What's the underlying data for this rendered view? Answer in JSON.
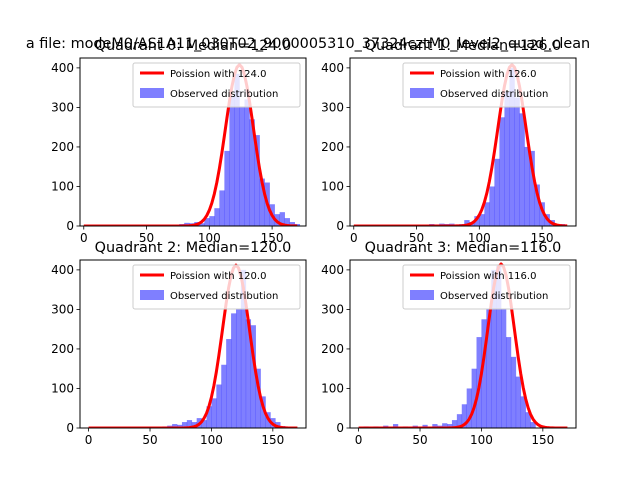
{
  "figure_title": "a file: modeM0/AS1A11_030T02_9000005310_37324cztM0_level2_quad_clean",
  "chart_data": [
    {
      "type": "bar",
      "title": "Quadrant 0: Median=124.0",
      "xlim": [
        -3,
        177
      ],
      "ylim": [
        0,
        425
      ],
      "xticks": [
        0,
        50,
        100,
        150
      ],
      "yticks": [
        0,
        100,
        200,
        300,
        400
      ],
      "legend_position": "top-right",
      "legend": [
        "Poission with 124.0",
        "Observed distribution"
      ],
      "bins": [
        [
          76,
          5
        ],
        [
          80,
          8
        ],
        [
          84,
          7
        ],
        [
          88,
          10
        ],
        [
          92,
          7
        ],
        [
          96,
          20
        ],
        [
          100,
          25
        ],
        [
          104,
          45
        ],
        [
          108,
          90
        ],
        [
          112,
          190
        ],
        [
          116,
          330
        ],
        [
          120,
          385
        ],
        [
          124,
          300
        ],
        [
          128,
          320
        ],
        [
          132,
          270
        ],
        [
          136,
          230
        ],
        [
          140,
          120
        ],
        [
          144,
          110
        ],
        [
          148,
          55
        ],
        [
          152,
          30
        ],
        [
          156,
          35
        ],
        [
          160,
          20
        ],
        [
          164,
          10
        ],
        [
          168,
          5
        ]
      ],
      "poisson_mean": 124.0,
      "poisson_peak": 408,
      "curve_range": [
        0,
        170
      ]
    },
    {
      "type": "bar",
      "title": "Quadrant 1: Median=126.0",
      "xlim": [
        -3,
        177
      ],
      "ylim": [
        0,
        425
      ],
      "xticks": [
        0,
        50,
        100,
        150
      ],
      "yticks": [
        0,
        100,
        200,
        300,
        400
      ],
      "legend_position": "top-right",
      "legend": [
        "Poission with 126.0",
        "Observed distribution"
      ],
      "bins": [
        [
          60,
          5
        ],
        [
          64,
          4
        ],
        [
          68,
          6
        ],
        [
          72,
          5
        ],
        [
          76,
          6
        ],
        [
          80,
          4
        ],
        [
          84,
          5
        ],
        [
          88,
          15
        ],
        [
          92,
          10
        ],
        [
          96,
          25
        ],
        [
          100,
          30
        ],
        [
          104,
          60
        ],
        [
          108,
          100
        ],
        [
          112,
          170
        ],
        [
          116,
          275
        ],
        [
          120,
          340
        ],
        [
          124,
          400
        ],
        [
          128,
          325
        ],
        [
          132,
          285
        ],
        [
          136,
          200
        ],
        [
          140,
          190
        ],
        [
          144,
          105
        ],
        [
          148,
          60
        ],
        [
          152,
          30
        ],
        [
          156,
          15
        ],
        [
          160,
          5
        ],
        [
          164,
          5
        ]
      ],
      "poisson_mean": 126.0,
      "poisson_peak": 408,
      "curve_range": [
        0,
        170
      ]
    },
    {
      "type": "bar",
      "title": "Quadrant 2: Median=120.0",
      "xlim": [
        -7,
        177
      ],
      "ylim": [
        0,
        425
      ],
      "xticks": [
        0,
        50,
        100,
        150
      ],
      "yticks": [
        0,
        100,
        200,
        300,
        400
      ],
      "legend_position": "top-right",
      "legend": [
        "Poission with 120.0",
        "Observed distribution"
      ],
      "bins": [
        [
          60,
          4
        ],
        [
          64,
          6
        ],
        [
          68,
          10
        ],
        [
          72,
          8
        ],
        [
          76,
          15
        ],
        [
          80,
          20
        ],
        [
          84,
          15
        ],
        [
          88,
          25
        ],
        [
          92,
          20
        ],
        [
          96,
          55
        ],
        [
          100,
          75
        ],
        [
          104,
          110
        ],
        [
          108,
          160
        ],
        [
          112,
          225
        ],
        [
          116,
          290
        ],
        [
          120,
          300
        ],
        [
          124,
          400
        ],
        [
          128,
          275
        ],
        [
          132,
          260
        ],
        [
          136,
          150
        ],
        [
          140,
          80
        ],
        [
          144,
          40
        ],
        [
          148,
          25
        ],
        [
          152,
          15
        ],
        [
          156,
          5
        ]
      ],
      "poisson_mean": 120.0,
      "poisson_peak": 412,
      "curve_range": [
        0,
        170
      ]
    },
    {
      "type": "bar",
      "title": "Quadrant 3: Median=116.0",
      "xlim": [
        -7,
        177
      ],
      "ylim": [
        0,
        425
      ],
      "xticks": [
        0,
        50,
        100,
        150
      ],
      "yticks": [
        0,
        100,
        200,
        300,
        400
      ],
      "legend_position": "top-right",
      "legend": [
        "Poission with 116.0",
        "Observed distribution"
      ],
      "bins": [
        [
          4,
          4
        ],
        [
          12,
          4
        ],
        [
          20,
          6
        ],
        [
          28,
          10
        ],
        [
          36,
          4
        ],
        [
          44,
          6
        ],
        [
          52,
          8
        ],
        [
          60,
          10
        ],
        [
          64,
          6
        ],
        [
          68,
          12
        ],
        [
          72,
          10
        ],
        [
          76,
          20
        ],
        [
          80,
          35
        ],
        [
          84,
          60
        ],
        [
          88,
          100
        ],
        [
          92,
          150
        ],
        [
          96,
          230
        ],
        [
          100,
          275
        ],
        [
          104,
          300
        ],
        [
          108,
          400
        ],
        [
          112,
          410
        ],
        [
          116,
          300
        ],
        [
          120,
          230
        ],
        [
          124,
          180
        ],
        [
          128,
          130
        ],
        [
          132,
          80
        ],
        [
          136,
          40
        ],
        [
          140,
          15
        ]
      ],
      "poisson_mean": 116.0,
      "poisson_peak": 415,
      "curve_range": [
        0,
        170
      ]
    }
  ]
}
